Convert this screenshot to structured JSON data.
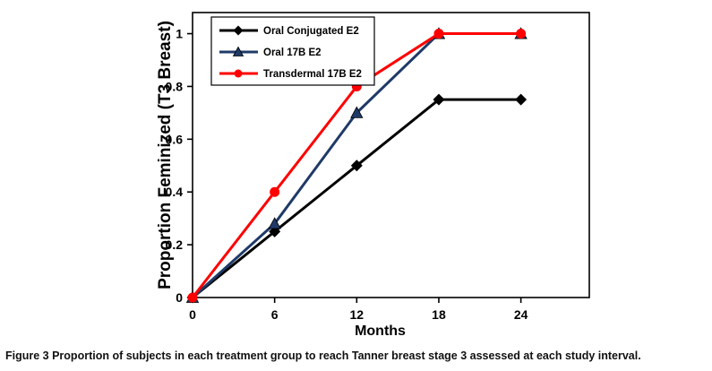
{
  "chart_data": {
    "type": "line",
    "x": [
      0,
      6,
      12,
      18,
      24
    ],
    "series": [
      {
        "name": "Oral Conjugated E2",
        "values": [
          0,
          0.25,
          0.5,
          0.75,
          0.75
        ],
        "color": "#000000",
        "marker": "diamond"
      },
      {
        "name": "Oral 17B E2",
        "values": [
          0,
          0.28,
          0.7,
          1,
          1
        ],
        "color": "#1F3A68",
        "marker": "triangle"
      },
      {
        "name": "Transdermal 17B E2",
        "values": [
          0,
          0.4,
          0.8,
          1,
          1
        ],
        "color": "#FF0000",
        "marker": "circle"
      }
    ],
    "title": "",
    "xlabel": "Months",
    "ylabel": "Proportion Feminized (T3 Breast)",
    "xlim": [
      0,
      29
    ],
    "ylim": [
      0,
      1.08
    ],
    "xticks": [
      0,
      6,
      12,
      18,
      24
    ],
    "yticks": [
      0,
      0.2,
      0.4,
      0.6,
      0.8,
      1
    ],
    "grid": false,
    "legend_position": "top-left"
  },
  "caption": {
    "label": "Figure 3",
    "text": " Proportion of subjects in each treatment group to reach Tanner breast stage 3 assessed at each study interval."
  }
}
